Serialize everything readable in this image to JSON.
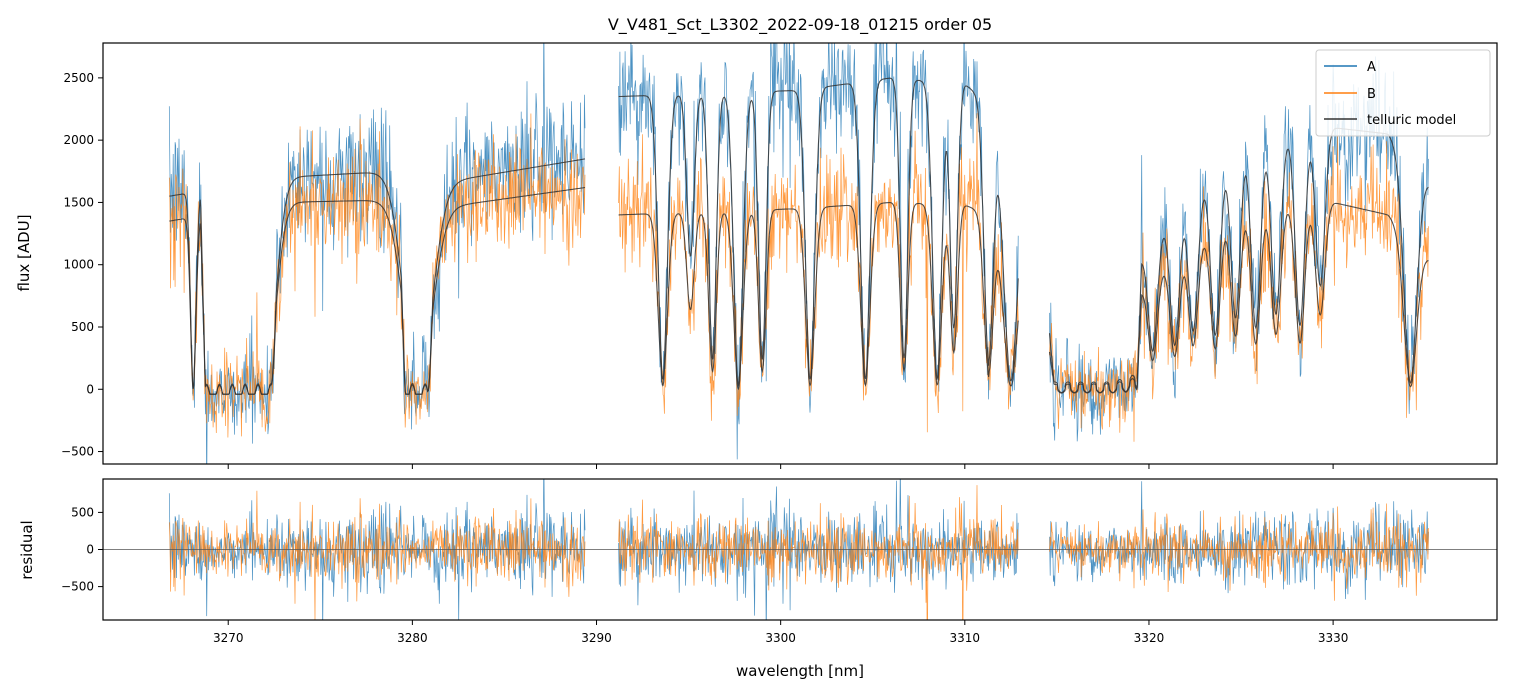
{
  "chart_data": {
    "type": "line",
    "title": "V_V481_Sct_L3302_2022-09-18_01215  order 05",
    "xlabel": "wavelength [nm]",
    "panels": [
      {
        "name": "flux",
        "ylabel": "flux [ADU]",
        "ylim": [
          -600,
          2780
        ],
        "yticks": [
          -500,
          0,
          500,
          1000,
          1500,
          2000,
          2500
        ]
      },
      {
        "name": "residual",
        "ylabel": "residual",
        "ylim": [
          -950,
          950
        ],
        "yticks": [
          -500,
          0,
          500
        ]
      }
    ],
    "xlim": [
      3263.2,
      3338.9
    ],
    "xticks": [
      3270,
      3280,
      3290,
      3300,
      3310,
      3320,
      3330
    ],
    "segments": [
      [
        3266.8,
        3289.4
      ],
      [
        3291.2,
        3312.9
      ],
      [
        3314.6,
        3335.2
      ]
    ],
    "absorption_lines": [
      {
        "center": 3268.1,
        "depth": 0.97,
        "width": 0.15
      },
      {
        "center": 3269.4,
        "depth": 0.55,
        "width": 0.2
      },
      {
        "center": 3270.6,
        "depth": 1.0,
        "width": 0.65
      },
      {
        "center": 3272.0,
        "depth": 1.0,
        "width": 0.55
      },
      {
        "center": 3280.3,
        "depth": 1.0,
        "width": 0.75
      },
      {
        "center": 3293.6,
        "depth": 0.95,
        "width": 0.25
      },
      {
        "center": 3295.1,
        "depth": 0.55,
        "width": 0.2
      },
      {
        "center": 3296.3,
        "depth": 0.9,
        "width": 0.2
      },
      {
        "center": 3297.7,
        "depth": 0.97,
        "width": 0.25
      },
      {
        "center": 3299.0,
        "depth": 0.9,
        "width": 0.2
      },
      {
        "center": 3301.6,
        "depth": 0.95,
        "width": 0.25
      },
      {
        "center": 3304.6,
        "depth": 0.95,
        "width": 0.25
      },
      {
        "center": 3306.7,
        "depth": 0.9,
        "width": 0.2
      },
      {
        "center": 3308.5,
        "depth": 0.95,
        "width": 0.25
      },
      {
        "center": 3309.4,
        "depth": 0.8,
        "width": 0.2
      },
      {
        "center": 3311.3,
        "depth": 0.9,
        "width": 0.25
      },
      {
        "center": 3312.5,
        "depth": 0.95,
        "width": 0.4
      },
      {
        "center": 3315.5,
        "depth": 0.85,
        "width": 0.2
      },
      {
        "center": 3316.6,
        "depth": 0.8,
        "width": 0.2
      },
      {
        "center": 3317.7,
        "depth": 0.85,
        "width": 0.2
      },
      {
        "center": 3318.8,
        "depth": 0.8,
        "width": 0.2
      },
      {
        "center": 3320.2,
        "depth": 0.75,
        "width": 0.25
      },
      {
        "center": 3321.4,
        "depth": 0.75,
        "width": 0.25
      },
      {
        "center": 3322.4,
        "depth": 0.7,
        "width": 0.25
      },
      {
        "center": 3323.6,
        "depth": 0.75,
        "width": 0.25
      },
      {
        "center": 3324.7,
        "depth": 0.7,
        "width": 0.25
      },
      {
        "center": 3325.8,
        "depth": 0.75,
        "width": 0.25
      },
      {
        "center": 3326.9,
        "depth": 0.7,
        "width": 0.25
      },
      {
        "center": 3328.2,
        "depth": 0.75,
        "width": 0.25
      },
      {
        "center": 3329.3,
        "depth": 0.6,
        "width": 0.25
      },
      {
        "center": 3334.2,
        "depth": 0.95,
        "width": 0.35
      }
    ],
    "broad_depressions": [
      {
        "range": [
          3268.5,
          3272.6
        ],
        "floor": 0.0
      },
      {
        "range": [
          3279.4,
          3281.1
        ],
        "floor": 0.0
      },
      {
        "range": [
          3314.6,
          3319.6
        ],
        "floor": 0.08
      }
    ],
    "series": [
      {
        "name": "A",
        "color": "#1f77b4",
        "continuum_points": [
          [
            3266.8,
            1550
          ],
          [
            3272.8,
            1700
          ],
          [
            3279.0,
            1750
          ],
          [
            3281.2,
            1650
          ],
          [
            3289.4,
            1850
          ],
          [
            3291.2,
            2350
          ],
          [
            3301.0,
            2400
          ],
          [
            3306.0,
            2500
          ],
          [
            3310.0,
            2450
          ],
          [
            3312.9,
            2100
          ],
          [
            3314.6,
            450
          ],
          [
            3318.0,
            450
          ],
          [
            3320.0,
            1200
          ],
          [
            3325.0,
            1950
          ],
          [
            3330.0,
            2100
          ],
          [
            3333.0,
            2050
          ],
          [
            3335.2,
            1650
          ]
        ],
        "noise": 260
      },
      {
        "name": "B",
        "color": "#ff7f0e",
        "continuum_points": [
          [
            3266.8,
            1350
          ],
          [
            3272.8,
            1500
          ],
          [
            3279.0,
            1520
          ],
          [
            3281.2,
            1450
          ],
          [
            3289.4,
            1620
          ],
          [
            3291.2,
            1400
          ],
          [
            3301.0,
            1450
          ],
          [
            3306.0,
            1500
          ],
          [
            3310.0,
            1480
          ],
          [
            3312.9,
            1300
          ],
          [
            3314.6,
            300
          ],
          [
            3318.0,
            350
          ],
          [
            3320.0,
            900
          ],
          [
            3325.0,
            1450
          ],
          [
            3330.0,
            1500
          ],
          [
            3333.0,
            1400
          ],
          [
            3335.2,
            1050
          ]
        ],
        "noise": 230
      },
      {
        "name": "telluric model",
        "color": "#333333"
      }
    ],
    "legend": {
      "position": "upper right",
      "entries": [
        "A",
        "B",
        "telluric model"
      ]
    }
  }
}
